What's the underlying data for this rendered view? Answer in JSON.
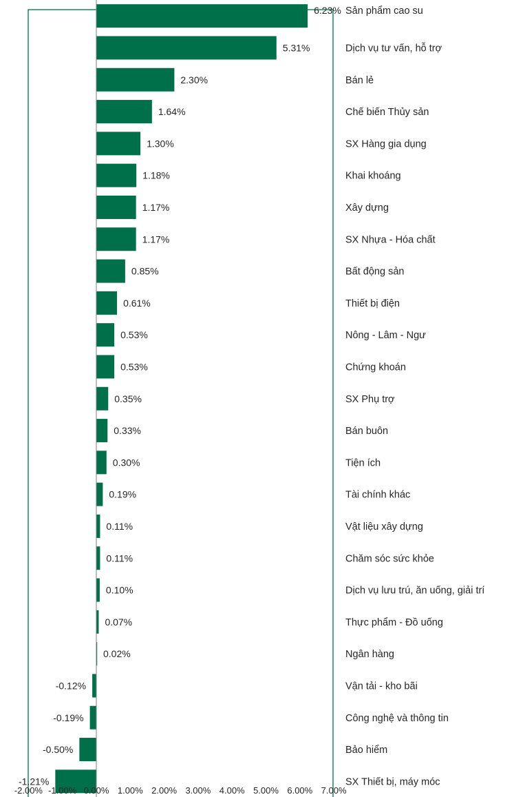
{
  "chart_data": {
    "type": "bar",
    "orientation": "horizontal",
    "title": "",
    "xlabel": "",
    "ylabel": "",
    "xlim": [
      -2.0,
      7.0
    ],
    "x_ticks": [
      "-2.00%",
      "-1.00%",
      "0.00%",
      "1.00%",
      "2.00%",
      "3.00%",
      "4.00%",
      "5.00%",
      "6.00%",
      "7.00%"
    ],
    "grid": false,
    "legend": "none",
    "bar_color": "#00704A",
    "frame_color": "#00704A",
    "categories": [
      "Sản phẩm cao su",
      "Dịch vụ tư vấn, hỗ trợ",
      "Bán lẻ",
      "Chế biến Thủy sản",
      "SX Hàng gia dụng",
      "Khai khoáng",
      "Xây dựng",
      "SX Nhựa - Hóa chất",
      "Bất động sản",
      "Thiết bị điện",
      "Nông - Lâm - Ngư",
      "Chứng khoán",
      "SX Phụ trợ",
      "Bán buôn",
      "Tiện ích",
      "Tài chính khác",
      "Vật liệu xây dựng",
      "Chăm sóc sức khỏe",
      "Dịch vụ lưu trú, ăn uống, giải trí",
      "Thực phẩm - Đồ uống",
      "Ngân hàng",
      "Vận tải - kho bãi",
      "Công nghệ và thông tin",
      "Bảo hiểm",
      "SX Thiết bị, máy móc"
    ],
    "values": [
      6.23,
      5.31,
      2.3,
      1.64,
      1.3,
      1.18,
      1.17,
      1.17,
      0.85,
      0.61,
      0.53,
      0.53,
      0.35,
      0.33,
      0.3,
      0.19,
      0.11,
      0.11,
      0.1,
      0.07,
      0.02,
      -0.12,
      -0.19,
      -0.5,
      -1.21
    ],
    "value_labels": [
      "6.23%",
      "5.31%",
      "2.30%",
      "1.64%",
      "1.30%",
      "1.18%",
      "1.17%",
      "1.17%",
      "0.85%",
      "0.61%",
      "0.53%",
      "0.53%",
      "0.35%",
      "0.33%",
      "0.30%",
      "0.19%",
      "0.11%",
      "0.11%",
      "0.10%",
      "0.07%",
      "0.02%",
      "-0.12%",
      "-0.19%",
      "-0.50%",
      "-1.21%"
    ]
  }
}
